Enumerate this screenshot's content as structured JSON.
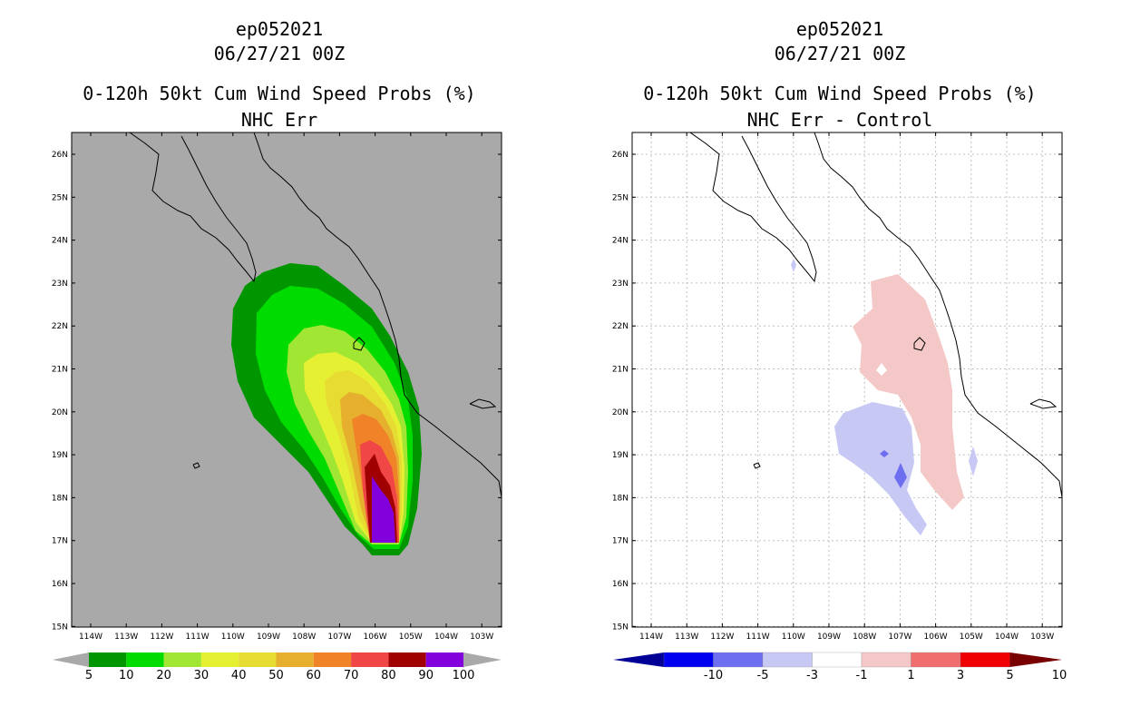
{
  "left": {
    "title_line1": "ep052021",
    "title_line2": "06/27/21 00Z",
    "title_line3": "0-120h 50kt Cum Wind Speed Probs (%)",
    "title_line4": "NHC Err",
    "colorbar_labels": [
      "5",
      "10",
      "20",
      "30",
      "40",
      "50",
      "60",
      "70",
      "80",
      "90",
      "100"
    ],
    "colorbar_colors": [
      "#009600",
      "#00dc00",
      "#a0e632",
      "#e6f032",
      "#e6dc32",
      "#e6af2d",
      "#f08228",
      "#f04646",
      "#a00000",
      "#8200dc"
    ],
    "bg_color": "#a9a9a9"
  },
  "right": {
    "title_line1": "ep052021",
    "title_line2": "06/27/21 00Z",
    "title_line3": "0-120h 50kt Cum Wind Speed Probs (%)",
    "title_line4": "NHC Err - Control",
    "colorbar_labels": [
      "-10",
      "-5",
      "-3",
      "-1",
      "1",
      "3",
      "5",
      "10"
    ],
    "colorbar_colors": [
      "#000096",
      "#0000f0",
      "#6e6ef0",
      "#c8c8f5",
      "#ffffff",
      "#f5c8c8",
      "#f06e6e",
      "#f00000",
      "#780000"
    ]
  },
  "axes": {
    "lat_labels": [
      "26N",
      "25N",
      "24N",
      "23N",
      "22N",
      "21N",
      "20N",
      "19N",
      "18N",
      "17N",
      "16N",
      "15N"
    ],
    "lon_labels": [
      "114W",
      "113W",
      "112W",
      "111W",
      "110W",
      "109W",
      "108W",
      "107W",
      "106W",
      "105W",
      "104W",
      "103W"
    ]
  }
}
